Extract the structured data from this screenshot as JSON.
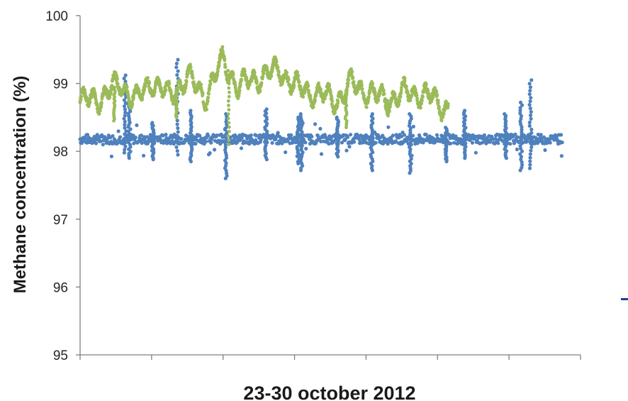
{
  "chart_data": {
    "type": "scatter",
    "title": "",
    "xlabel": "23-30 october 2012",
    "ylabel": "Methane concentration  (%)",
    "ylim": [
      95,
      100
    ],
    "yticks": [
      "95",
      "96",
      "97",
      "98",
      "99",
      "100"
    ],
    "x_tick_count": 8,
    "grid": false,
    "legend": "none visible",
    "colors": {
      "blue": "#4f81bd",
      "green": "#9bbb59",
      "axis": "#7f7f7f",
      "legend_fragment": "#1f3d99"
    },
    "series": [
      {
        "color_key": "blue",
        "baseline": 98.18,
        "x_extent": [
          0,
          6.75
        ],
        "spikes": [
          {
            "x": 0.63,
            "low": 97.98,
            "high": 99.12
          },
          {
            "x": 0.69,
            "low": 97.9,
            "high": 98.72
          },
          {
            "x": 1.02,
            "low": 97.88,
            "high": 98.42
          },
          {
            "x": 1.36,
            "low": 97.95,
            "high": 99.35
          },
          {
            "x": 1.55,
            "low": 97.85,
            "high": 98.6
          },
          {
            "x": 2.04,
            "low": 97.6,
            "high": 98.55
          },
          {
            "x": 2.6,
            "low": 97.88,
            "high": 98.62
          },
          {
            "x": 3.05,
            "low": 97.82,
            "high": 98.5
          },
          {
            "x": 3.1,
            "low": 97.72,
            "high": 98.55
          },
          {
            "x": 3.6,
            "low": 97.92,
            "high": 98.5
          },
          {
            "x": 4.08,
            "low": 97.72,
            "high": 98.55
          },
          {
            "x": 4.62,
            "low": 97.68,
            "high": 98.55
          },
          {
            "x": 5.12,
            "low": 97.85,
            "high": 98.35
          },
          {
            "x": 5.38,
            "low": 97.9,
            "high": 98.6
          },
          {
            "x": 5.95,
            "low": 97.9,
            "high": 98.55
          },
          {
            "x": 6.17,
            "low": 97.72,
            "high": 98.72
          },
          {
            "x": 6.3,
            "low": 97.75,
            "high": 99.05
          }
        ]
      },
      {
        "color_key": "green",
        "x_extent": [
          0,
          5.15
        ],
        "trend": [
          [
            0.0,
            98.72
          ],
          [
            0.3,
            98.8
          ],
          [
            0.55,
            99.0
          ],
          [
            0.8,
            98.75
          ],
          [
            1.0,
            99.05
          ],
          [
            1.25,
            98.8
          ],
          [
            1.5,
            99.1
          ],
          [
            1.75,
            98.8
          ],
          [
            2.0,
            99.35
          ],
          [
            2.2,
            98.95
          ],
          [
            2.5,
            99.1
          ],
          [
            2.8,
            99.2
          ],
          [
            3.0,
            98.95
          ],
          [
            3.3,
            98.85
          ],
          [
            3.6,
            98.75
          ],
          [
            3.8,
            99.0
          ],
          [
            4.05,
            98.85
          ],
          [
            4.3,
            98.75
          ],
          [
            4.6,
            98.88
          ],
          [
            4.9,
            98.8
          ],
          [
            5.15,
            98.62
          ]
        ],
        "dips": [
          {
            "x": 0.48,
            "low": 98.45
          },
          {
            "x": 1.35,
            "low": 98.5
          },
          {
            "x": 2.08,
            "low": 98.1
          },
          {
            "x": 3.72,
            "low": 98.35
          },
          {
            "x": 4.3,
            "low": 98.55
          }
        ]
      }
    ]
  }
}
